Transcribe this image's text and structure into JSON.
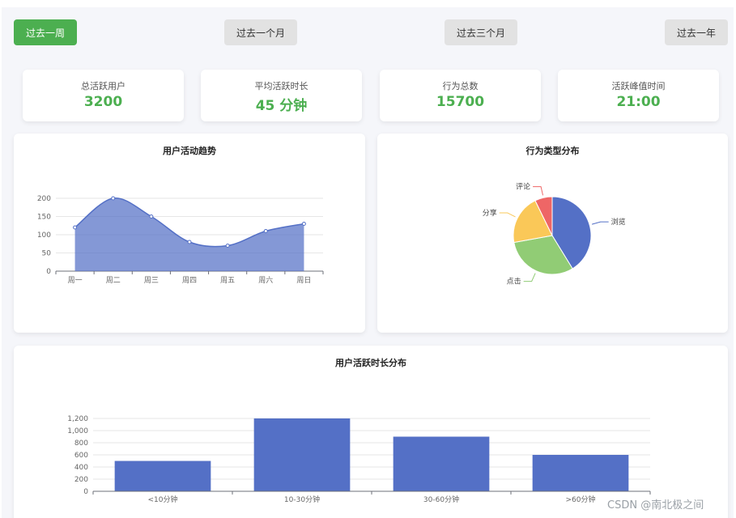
{
  "filters": {
    "week": "过去一周",
    "month": "过去一个月",
    "quarter": "过去三个月",
    "year": "过去一年"
  },
  "stats": [
    {
      "label": "总活跃用户",
      "value": "3200"
    },
    {
      "label": "平均活跃时长",
      "value": "45 分钟"
    },
    {
      "label": "行为总数",
      "value": "15700"
    },
    {
      "label": "活跃峰值时间",
      "value": "21:00"
    }
  ],
  "colors": {
    "accent": "#4caf50",
    "chart_blue": "#5470c6",
    "pie_green": "#91cc75",
    "pie_yellow": "#fac858",
    "pie_red": "#ee6666"
  },
  "chart_data": [
    {
      "type": "area",
      "title": "用户活动趋势",
      "categories": [
        "周一",
        "周二",
        "周三",
        "周四",
        "周五",
        "周六",
        "周日"
      ],
      "values": [
        120,
        200,
        150,
        80,
        70,
        110,
        130
      ],
      "yticks": [
        "0",
        "50",
        "100",
        "150",
        "200"
      ],
      "ylim": [
        0,
        200
      ],
      "grid": true
    },
    {
      "type": "pie",
      "title": "行为类型分布",
      "slices": [
        {
          "name": "浏览",
          "value": 40
        },
        {
          "name": "点击",
          "value": 30
        },
        {
          "name": "分享",
          "value": 20
        },
        {
          "name": "评论",
          "value": 7
        }
      ]
    },
    {
      "type": "bar",
      "title": "用户活跃时长分布",
      "categories": [
        "<10分钟",
        "10-30分钟",
        "30-60分钟",
        ">60分钟"
      ],
      "values": [
        500,
        1200,
        900,
        600
      ],
      "yticks": [
        "0",
        "200",
        "400",
        "600",
        "800",
        "1,000",
        "1,200"
      ],
      "ylim": [
        0,
        1200
      ],
      "grid": true
    }
  ],
  "watermark": "CSDN @南北极之间"
}
